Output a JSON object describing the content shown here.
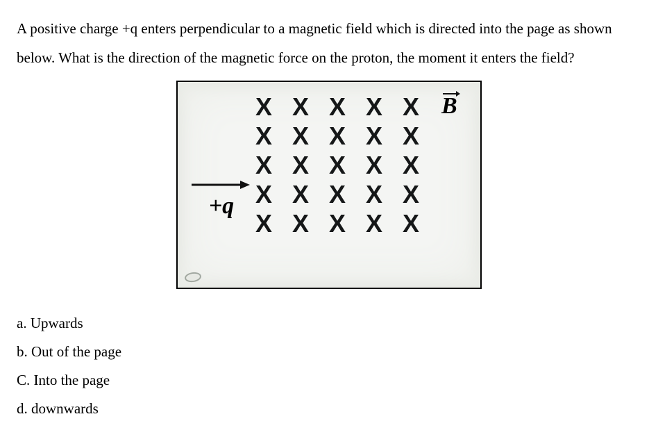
{
  "question": {
    "line1": "A positive charge +q enters perpendicular to a magnetic field which is directed into the page as shown",
    "line2": "below. What is the direction of the magnetic force on the proton, the moment it enters the field?"
  },
  "figure": {
    "rows": 5,
    "cols": 5,
    "symbol": "X",
    "b_label": "B",
    "charge_label": "+q",
    "x_color": "#151718",
    "border_color": "#000000",
    "bg_color": "#f4f5f3"
  },
  "options": {
    "a": "a. Upwards",
    "b": "b. Out of the page",
    "c": "C. Into the page",
    "d": "d. downwards"
  }
}
